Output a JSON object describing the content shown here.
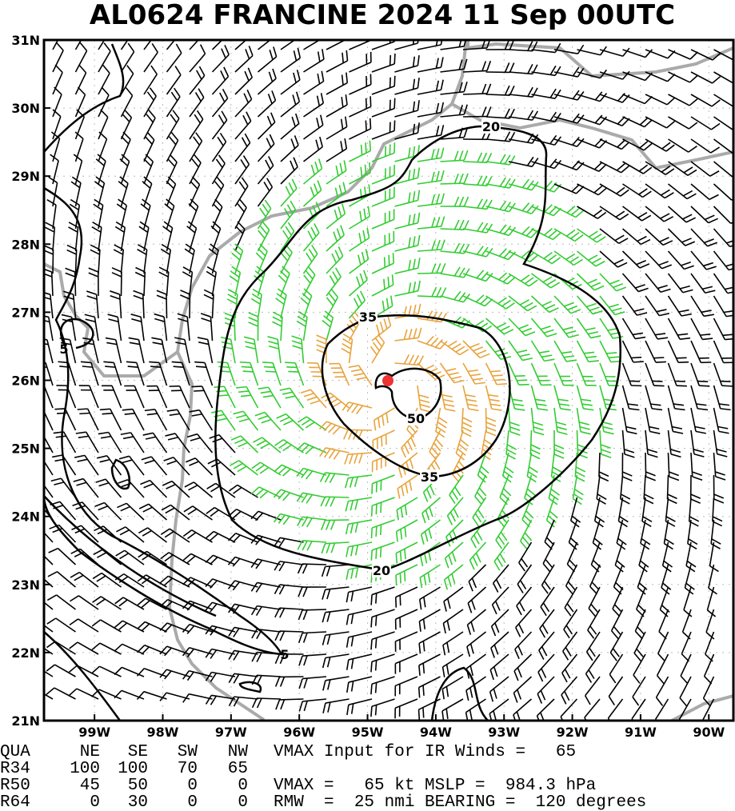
{
  "map": {
    "title": "AL0624   FRANCINE 2024 11 Sep 00UTC",
    "lon_ticks": [
      {
        "value": -99,
        "label": "99W"
      },
      {
        "value": -98,
        "label": "98W"
      },
      {
        "value": -97,
        "label": "97W"
      },
      {
        "value": -96,
        "label": "96W"
      },
      {
        "value": -95,
        "label": "95W"
      },
      {
        "value": -94,
        "label": "94W"
      },
      {
        "value": -93,
        "label": "93W"
      },
      {
        "value": -92,
        "label": "92W"
      },
      {
        "value": -91,
        "label": "91W"
      },
      {
        "value": -90,
        "label": "90W"
      }
    ],
    "lat_ticks": [
      {
        "value": 31,
        "label": "31N"
      },
      {
        "value": 30,
        "label": "30N"
      },
      {
        "value": 29,
        "label": "29N"
      },
      {
        "value": 28,
        "label": "28N"
      },
      {
        "value": 27,
        "label": "27N"
      },
      {
        "value": 26,
        "label": "26N"
      },
      {
        "value": 25,
        "label": "25N"
      },
      {
        "value": 24,
        "label": "24N"
      },
      {
        "value": 23,
        "label": "23N"
      },
      {
        "value": 22,
        "label": "22N"
      },
      {
        "value": 21,
        "label": "21N"
      }
    ],
    "xlim": [
      -99.74,
      -89.64
    ],
    "ylim": [
      21,
      31
    ],
    "contour_labels": [
      "20",
      "20",
      "35",
      "35",
      "50",
      "5",
      "5"
    ]
  },
  "table": {
    "header": [
      "QUA",
      "NE",
      "SE",
      "SW",
      "NW"
    ],
    "rows": [
      [
        "R34",
        100,
        100,
        70,
        65
      ],
      [
        "R50",
        45,
        50,
        0,
        0
      ],
      [
        "R64",
        0,
        30,
        0,
        0
      ]
    ]
  },
  "info": [
    "VMAX Input for IR Winds =   65",
    "",
    "VMAX =   65 kt MSLP =  984.3 hPa",
    "RMW  =  25 nmi BEARING =  120 degrees"
  ]
}
